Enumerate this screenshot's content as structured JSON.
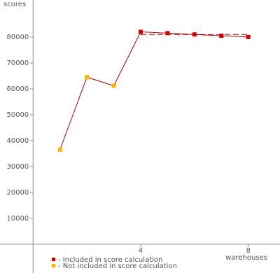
{
  "chart_data": {
    "type": "line",
    "y_label": "scores",
    "x_label": "warehouses",
    "xlim": [
      -1.23,
      9.18
    ],
    "ylim": [
      -13800,
      94300
    ],
    "xticks": [
      4,
      8
    ],
    "yticks": [
      10000,
      20000,
      30000,
      40000,
      50000,
      60000,
      70000,
      80000
    ],
    "line_color": "#aa0000",
    "series": [
      {
        "name": "- Not included in score calculation",
        "color": "#ffb000",
        "x": [
          1,
          2,
          3
        ],
        "values": [
          36500,
          64500,
          61200
        ]
      },
      {
        "name": "- Included in score calculation",
        "color": "#cc0000",
        "x": [
          4,
          5,
          6,
          7,
          8
        ],
        "values": [
          82000,
          81500,
          81000,
          80500,
          80000
        ]
      }
    ],
    "reference_line": {
      "x": [
        4,
        8
      ],
      "value": 81000
    }
  }
}
